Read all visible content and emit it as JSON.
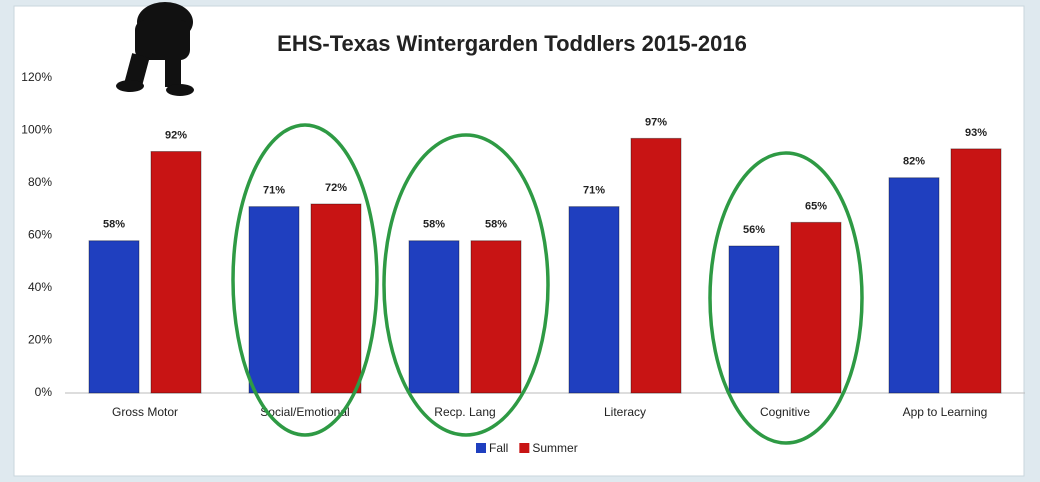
{
  "chart_data": {
    "type": "bar",
    "title": "EHS-Texas Wintergarden Toddlers 2015-2016",
    "categories": [
      "Gross Motor",
      "Social/Emotional",
      "Recp. Lang",
      "Literacy",
      "Cognitive",
      "App to Learning"
    ],
    "series": [
      {
        "name": "Fall",
        "color": "#1f3fbf",
        "values": [
          58,
          71,
          58,
          71,
          56,
          82
        ],
        "value_labels": [
          "58%",
          "71%",
          "58%",
          "71%",
          "56%",
          "82%"
        ]
      },
      {
        "name": "Summer",
        "color": "#c81414",
        "values": [
          92,
          72,
          58,
          97,
          65,
          93
        ],
        "value_labels": [
          "92%",
          "72%",
          "58%",
          "97%",
          "65%",
          "93%"
        ]
      }
    ],
    "ylim": [
      0,
      120
    ],
    "yticks": [
      {
        "value": 0,
        "label": "0%"
      },
      {
        "value": 20,
        "label": "20%"
      },
      {
        "value": 40,
        "label": "40%"
      },
      {
        "value": 60,
        "label": "60%"
      },
      {
        "value": 80,
        "label": "80%"
      },
      {
        "value": 100,
        "label": "100%"
      },
      {
        "value": 120,
        "label": "120%"
      }
    ],
    "grid": false,
    "legend": "bottom"
  }
}
